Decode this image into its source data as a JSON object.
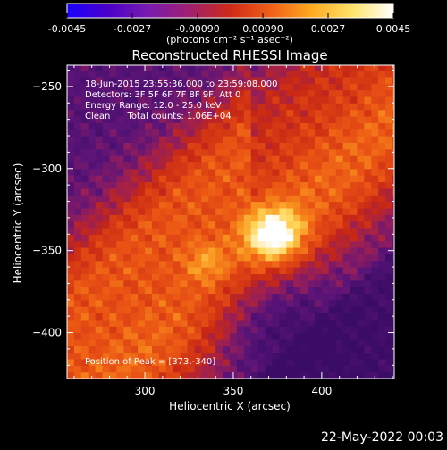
{
  "colorbar": {
    "tick_labels": [
      "-0.0045",
      "-0.0027",
      "-0.00090",
      "0.00090",
      "0.0027",
      "0.0045"
    ],
    "tick_values": [
      -0.0045,
      -0.0027,
      -0.0009,
      0.0009,
      0.0027,
      0.0045
    ],
    "range": [
      -0.0045,
      0.0045
    ],
    "unit": "(photons cm⁻² s⁻¹ asec⁻²)",
    "colors": [
      "#1a00ff",
      "#4b00c8",
      "#7a1bb0",
      "#a02070",
      "#ce2a16",
      "#f06018",
      "#ffaa20",
      "#ffe36a",
      "#ffffff"
    ]
  },
  "chart_data": {
    "type": "heatmap",
    "title": "Reconstructed RHESSI Image",
    "xlabel": "Heliocentric X (arcsec)",
    "ylabel": "Heliocentric Y (arcsec)",
    "xlim": [
      256,
      441
    ],
    "ylim": [
      -428,
      -237
    ],
    "x_ticks": [
      300,
      350,
      400
    ],
    "y_ticks": [
      -250,
      -300,
      -350,
      -400
    ],
    "info_lines": [
      "18-Jun-2015 23:55:36.000 to 23:59:08.000",
      "Detectors: 3F 5F 6F 7F 8F 9F, Att 0",
      "Energy Range: 12.0 - 25.0 keV",
      "Clean      Total counts: 1.06E+04"
    ],
    "peak_label": "Position of Peak = [373,-340]",
    "peak": {
      "x": 373,
      "y": -340,
      "value": 0.0045
    },
    "grid": false,
    "colormap": "hot-like (blue-purple-red-orange-yellow-white)"
  },
  "footer": {
    "date": "22-May-2022 00:03"
  }
}
